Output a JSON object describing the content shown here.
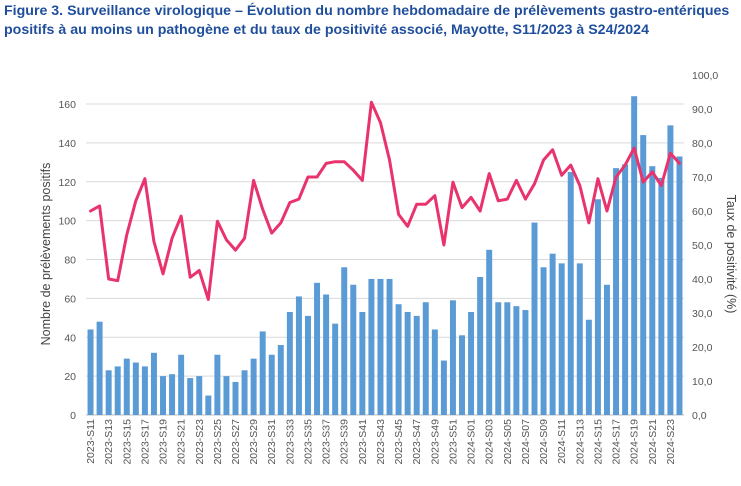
{
  "title": "Figure 3. Surveillance virologique – Évolution du nombre hebdomadaire de prélèvements gastro-entériques positifs à au moins un pathogène et du taux de positivité associé, Mayotte, S11/2023 à S24/2024",
  "colors": {
    "bars": "#5b9bd5",
    "line": "#e8336d",
    "title": "#1f4e9c"
  },
  "chart_data": {
    "type": "bar+line",
    "ylabel": "Nombre de prélèvements positifs",
    "y2label": "Taux de positivité (%)",
    "ylim": [
      0,
      170
    ],
    "y_ticks": [
      "0",
      "20",
      "40",
      "60",
      "80",
      "100",
      "120",
      "140",
      "160"
    ],
    "y2lim": [
      0,
      100
    ],
    "y2_ticks": [
      "0,0",
      "10,0",
      "20,0",
      "30,0",
      "40,0",
      "50,0",
      "60,0",
      "70,0",
      "80,0",
      "90,0",
      "100,0"
    ],
    "grid": "horizontal",
    "categories": [
      "2023-S11",
      "2023-S12",
      "2023-S13",
      "2023-S14",
      "2023-S15",
      "2023-S16",
      "2023-S17",
      "2023-S18",
      "2023-S19",
      "2023-S20",
      "2023-S21",
      "2023-S22",
      "2023-S23",
      "2023-S24",
      "2023-S25",
      "2023-S26",
      "2023-S27",
      "2023-S28",
      "2023-S29",
      "2023-S30",
      "2023-S31",
      "2023-S32",
      "2023-S33",
      "2023-S34",
      "2023-S35",
      "2023-S36",
      "2023-S37",
      "2023-S38",
      "2023-S39",
      "2023-S40",
      "2023-S41",
      "2023-S42",
      "2023-S43",
      "2023-S44",
      "2023-S45",
      "2023-S46",
      "2023-S47",
      "2023-S48",
      "2023-S49",
      "2023-S50",
      "2023-S51",
      "2023-S52",
      "2024-S01",
      "2024-S02",
      "2024-S03",
      "2024-S04",
      "2024-S05",
      "2024-S06",
      "2024-S07",
      "2024-S08",
      "2024-S09",
      "2024-S10",
      "2024-S11",
      "2024-S12",
      "2024-S13",
      "2024-S14",
      "2024-S15",
      "2024-S16",
      "2024-S17",
      "2024-S18",
      "2024-S19",
      "2024-S20",
      "2024-S21",
      "2024-S22",
      "2024-S23",
      "2024-S24"
    ],
    "x_tick_labels": [
      "2023-S11",
      "2023-S13",
      "2023-S15",
      "2023-S17",
      "2023-S19",
      "2023-S21",
      "2023-S23",
      "2023-S25",
      "2023-S27",
      "2023-S29",
      "2023-S31",
      "2023-S33",
      "2023-S35",
      "2023-S37",
      "2023-S39",
      "2023-S41",
      "2023-S43",
      "2023-S45",
      "2023-S47",
      "2023-S49",
      "2023-S51",
      "2024-S01",
      "2024-S03",
      "2024-S05",
      "2024-S07",
      "2024-S09",
      "2024-S11",
      "2024-S13",
      "2024-S15",
      "2024-S17",
      "2024-S19",
      "2024-S21",
      "2024-S23"
    ],
    "bars": [
      44,
      48,
      23,
      25,
      29,
      27,
      25,
      32,
      20,
      21,
      31,
      19,
      20,
      10,
      31,
      20,
      17,
      23,
      29,
      43,
      31,
      36,
      53,
      61,
      51,
      68,
      62,
      47,
      76,
      67,
      53,
      70,
      70,
      70,
      57,
      53,
      51,
      58,
      44,
      28,
      59,
      41,
      53,
      71,
      85,
      58,
      58,
      56,
      54,
      99,
      76,
      83,
      78,
      125,
      78,
      49,
      111,
      67,
      127,
      129,
      164,
      144,
      128,
      122,
      149,
      133
    ],
    "line": [
      60,
      61.5,
      40,
      39.5,
      53,
      63,
      69.5,
      51,
      41.5,
      52,
      58.5,
      40.5,
      42.5,
      34,
      57,
      51.5,
      48.5,
      52,
      69,
      60.5,
      53.5,
      56.5,
      62.5,
      63.5,
      70,
      70,
      74,
      74.5,
      74.5,
      72,
      69,
      92,
      86,
      75,
      59,
      55.5,
      62,
      62,
      64.5,
      50,
      68.5,
      61,
      64,
      60,
      71,
      63,
      63.5,
      69,
      63.5,
      68,
      75,
      78,
      70.5,
      73.5,
      67.5,
      56.5,
      69.5,
      60,
      70,
      73.5,
      78.5,
      68.5,
      71.5,
      67.5,
      77,
      74
    ]
  }
}
